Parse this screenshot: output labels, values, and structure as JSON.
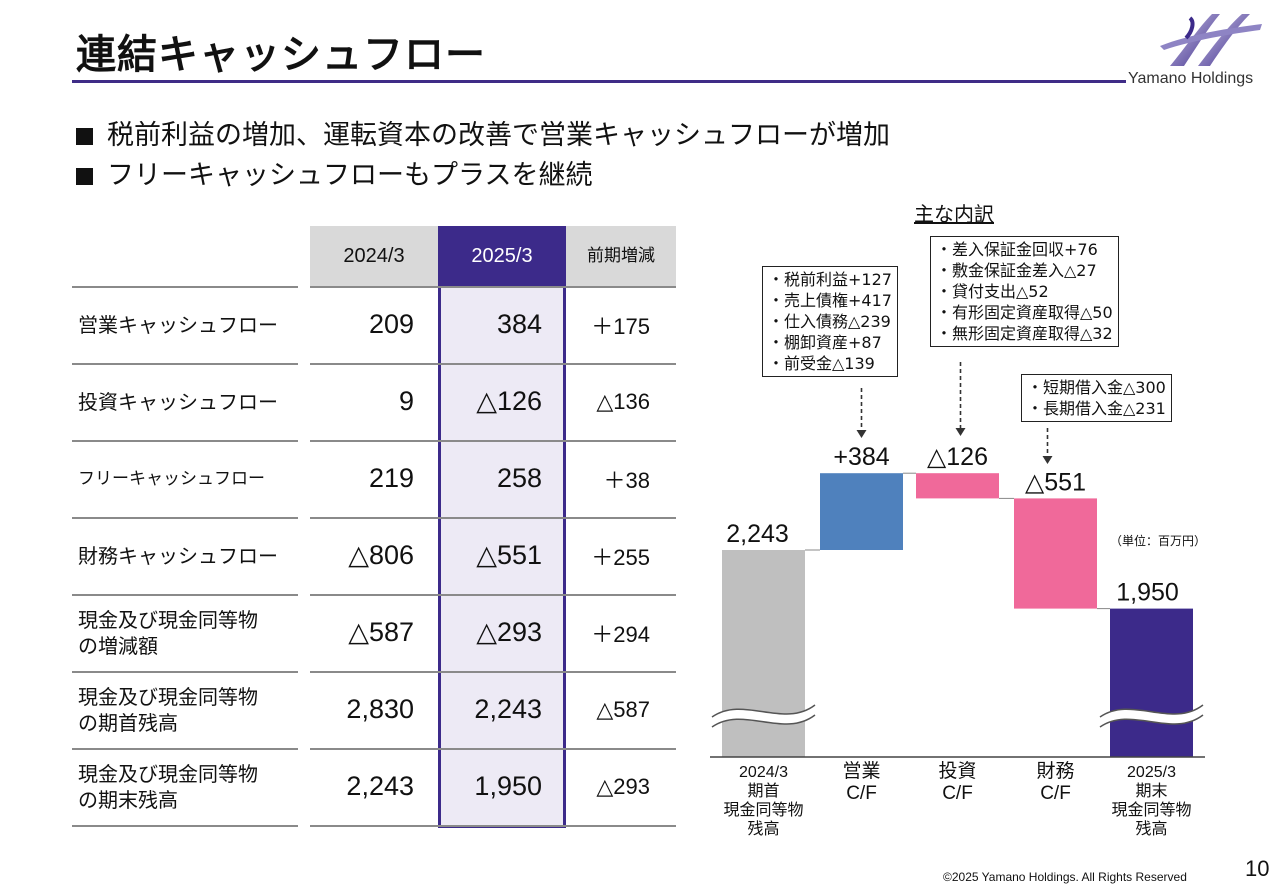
{
  "header": {
    "title": "連結キャッシュフロー",
    "company": "Yamano Holdings"
  },
  "bullets": [
    "税前利益の増加、運転資本の改善で営業キャッシュフローが増加",
    "フリーキャッシュフローもプラスを継続"
  ],
  "table": {
    "columns": [
      "2024/3",
      "2025/3"
    ],
    "change_header": [
      "前期",
      "増減"
    ],
    "rows": [
      {
        "label": [
          "営業キャッシュフロー"
        ],
        "v2024": "209",
        "v2025": "384",
        "change": "＋175"
      },
      {
        "label": [
          "投資キャッシュフロー"
        ],
        "v2024": "9",
        "v2025": "△126",
        "change": "△136"
      },
      {
        "label": [
          "フリーキャッシュフロー"
        ],
        "v2024": "219",
        "v2025": "258",
        "change": "＋38"
      },
      {
        "label": [
          "財務キャッシュフロー"
        ],
        "v2024": "△806",
        "v2025": "△551",
        "change": "＋255"
      },
      {
        "label": [
          "現金及び現金同等物",
          "の増減額"
        ],
        "v2024": "△587",
        "v2025": "△293",
        "change": "＋294"
      },
      {
        "label": [
          "現金及び現金同等物",
          "の期首残高"
        ],
        "v2024": "2,830",
        "v2025": "2,243",
        "change": "△587"
      },
      {
        "label": [
          "現金及び現金同等物",
          "の期末残高"
        ],
        "v2024": "2,243",
        "v2025": "1,950",
        "change": "△293"
      }
    ]
  },
  "breakdown": {
    "heading": "主な内訳",
    "operating": [
      "・税前利益+127",
      "・売上債権+417",
      "・仕入債務△239",
      "・棚卸資産+87",
      "・前受金△139"
    ],
    "investing": [
      "・差入保証金回収+76",
      "・敷金保証金差入△27",
      "・貸付支出△52",
      "・有形固定資産取得△50",
      "・無形固定資産取得△32"
    ],
    "financing": [
      "・短期借入金△300",
      "・長期借入金△231"
    ]
  },
  "chart_data": {
    "type": "bar",
    "subtype": "waterfall",
    "unit_note": "（単位：百万円）",
    "categories": [
      [
        "2024/3",
        "期首",
        "現金同等物",
        "残高"
      ],
      [
        "営業",
        "C/F"
      ],
      [
        "投資",
        "C/F"
      ],
      [
        "財務",
        "C/F"
      ],
      [
        "2025/3",
        "期末",
        "現金同等物",
        "残高"
      ]
    ],
    "values": [
      2243,
      384,
      -126,
      -551,
      1950
    ],
    "value_labels": [
      "2,243",
      "+384",
      "△126",
      "△551",
      "1,950"
    ],
    "colors": [
      "#bfbfbf",
      "#4f81bd",
      "#f0699a",
      "#f0699a",
      "#3c2a8a"
    ],
    "axis_break": true
  },
  "footer": {
    "copyright": "©2025 Yamano Holdings. All Rights Reserved",
    "page": "10"
  }
}
